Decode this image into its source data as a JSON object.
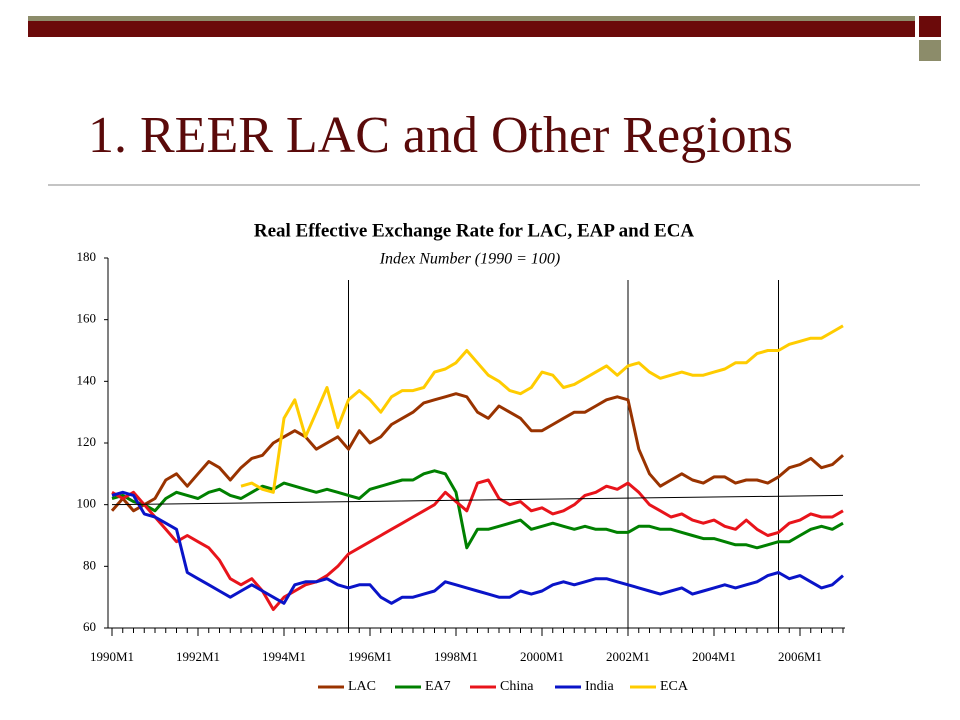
{
  "slide_title": "1. REER LAC and Other Regions",
  "chart_data": {
    "type": "line",
    "title": "Real Effective Exchange Rate for LAC, EAP and ECA",
    "subtitle": "Index Number (1990 = 100)",
    "categories": [
      "1990M1",
      null,
      null,
      null,
      null,
      null,
      null,
      null,
      "1992M1",
      null,
      null,
      null,
      null,
      null,
      null,
      null,
      "1994M1",
      null,
      null,
      null,
      null,
      null,
      null,
      null,
      "1996M1",
      null,
      null,
      null,
      null,
      null,
      null,
      null,
      "1998M1",
      null,
      null,
      null,
      null,
      null,
      null,
      null,
      "2000M1",
      null,
      null,
      null,
      null,
      null,
      null,
      null,
      "2002M1",
      null,
      null,
      null,
      null,
      null,
      null,
      null,
      "2004M1",
      null,
      null,
      null,
      null,
      null,
      null,
      null,
      "2006M1",
      null,
      null,
      null,
      null
    ],
    "ylim": [
      60,
      180
    ],
    "yticks": [
      60,
      80,
      100,
      120,
      140,
      160,
      180
    ],
    "grid": false,
    "legend": "bottom",
    "vlines": [
      22,
      48,
      62
    ],
    "trend_line": [
      100,
      103
    ],
    "series": [
      {
        "name": "LAC",
        "color": "#993300",
        "values": [
          98,
          102,
          98,
          100,
          102,
          108,
          110,
          106,
          110,
          114,
          112,
          108,
          112,
          115,
          116,
          120,
          122,
          124,
          122,
          118,
          120,
          122,
          118,
          124,
          120,
          122,
          126,
          128,
          130,
          133,
          134,
          135,
          136,
          135,
          130,
          128,
          132,
          130,
          128,
          124,
          124,
          126,
          128,
          130,
          130,
          132,
          134,
          135,
          134,
          118,
          110,
          106,
          108,
          110,
          108,
          107,
          109,
          109,
          107,
          108,
          108,
          107,
          109,
          112,
          113,
          115,
          112,
          113,
          116
        ]
      },
      {
        "name": "EA7",
        "color": "#008000",
        "values": [
          102,
          103,
          101,
          100,
          98,
          102,
          104,
          103,
          102,
          104,
          105,
          103,
          102,
          104,
          106,
          105,
          107,
          106,
          105,
          104,
          105,
          104,
          103,
          102,
          105,
          106,
          107,
          108,
          108,
          110,
          111,
          110,
          104,
          86,
          92,
          92,
          93,
          94,
          95,
          92,
          93,
          94,
          93,
          92,
          93,
          92,
          92,
          91,
          91,
          93,
          93,
          92,
          92,
          91,
          90,
          89,
          89,
          88,
          87,
          87,
          86,
          87,
          88,
          88,
          90,
          92,
          93,
          92,
          94
        ]
      },
      {
        "name": "China",
        "color": "#e8141b",
        "values": [
          104,
          102,
          104,
          100,
          96,
          92,
          88,
          90,
          88,
          86,
          82,
          76,
          74,
          76,
          72,
          66,
          70,
          72,
          74,
          75,
          77,
          80,
          84,
          86,
          88,
          90,
          92,
          94,
          96,
          98,
          100,
          104,
          101,
          98,
          107,
          108,
          102,
          100,
          101,
          98,
          99,
          97,
          98,
          100,
          103,
          104,
          106,
          105,
          107,
          104,
          100,
          98,
          96,
          97,
          95,
          94,
          95,
          93,
          92,
          95,
          92,
          90,
          91,
          94,
          95,
          97,
          96,
          96,
          98
        ]
      },
      {
        "name": "India",
        "color": "#0a14c8",
        "values": [
          103,
          104,
          103,
          97,
          96,
          94,
          92,
          78,
          76,
          74,
          72,
          70,
          72,
          74,
          72,
          70,
          68,
          74,
          75,
          75,
          76,
          74,
          73,
          74,
          74,
          70,
          68,
          70,
          70,
          71,
          72,
          75,
          74,
          73,
          72,
          71,
          70,
          70,
          72,
          71,
          72,
          74,
          75,
          74,
          75,
          76,
          76,
          75,
          74,
          73,
          72,
          71,
          72,
          73,
          71,
          72,
          73,
          74,
          73,
          74,
          75,
          77,
          78,
          76,
          77,
          75,
          73,
          74,
          77
        ]
      },
      {
        "name": "ECA",
        "color": "#ffcc00",
        "values": [
          null,
          null,
          null,
          null,
          null,
          null,
          null,
          null,
          null,
          null,
          null,
          null,
          106,
          107,
          105,
          104,
          128,
          134,
          122,
          130,
          138,
          125,
          134,
          137,
          134,
          130,
          135,
          137,
          137,
          138,
          143,
          144,
          146,
          150,
          146,
          142,
          140,
          137,
          136,
          138,
          143,
          142,
          138,
          139,
          141,
          143,
          145,
          142,
          145,
          146,
          143,
          141,
          142,
          143,
          142,
          142,
          143,
          144,
          146,
          146,
          149,
          150,
          150,
          152,
          153,
          154,
          154,
          156,
          158
        ]
      }
    ]
  }
}
